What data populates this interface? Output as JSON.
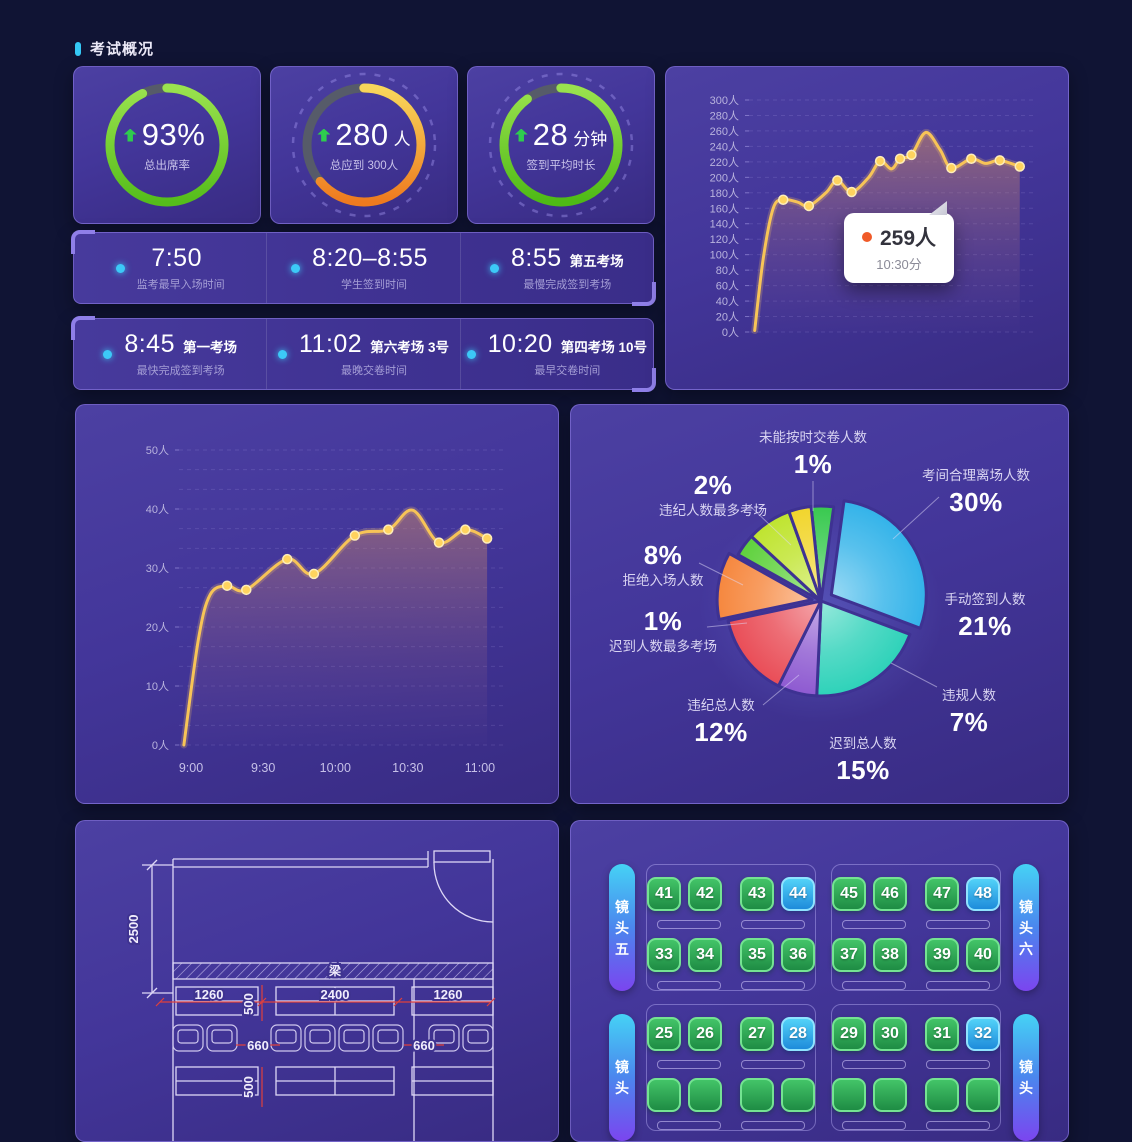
{
  "header": {
    "title": "考试概况"
  },
  "colors": {
    "background": "#101434",
    "card_purple": "#43369a",
    "accent_cyan": "#35c8f5",
    "line": "#f7c457",
    "dim_red": "#e0403c",
    "seat_green": "#2fae55",
    "seat_blue": "#37b9ef"
  },
  "stat_cards": [
    {
      "value": "93%",
      "unit": "",
      "label": "总出席率",
      "trend": "up",
      "ring": {
        "pct": 93,
        "from": "#9ae24e",
        "to": "#55bd1b",
        "deco": false
      }
    },
    {
      "value": "280",
      "unit": "人",
      "label": "总应到 300人",
      "trend": "up",
      "ring": {
        "pct": 64,
        "from": "#f8d75b",
        "to": "#ee7a1f",
        "deco": true
      }
    },
    {
      "value": "28",
      "unit": "分钟",
      "label": "签到平均时长",
      "trend": "up",
      "ring": {
        "pct": 90,
        "from": "#9ae24e",
        "to": "#4eba16",
        "deco": true
      }
    }
  ],
  "time_rows": [
    [
      {
        "time": "7:50",
        "suffix": "",
        "label": "监考最早入场时间"
      },
      {
        "time": "8:20–8:55",
        "suffix": "",
        "label": "学生签到时间"
      },
      {
        "time": "8:55",
        "suffix": "第五考场",
        "label": "最慢完成签到考场"
      }
    ],
    [
      {
        "time": "8:45",
        "suffix": "第一考场",
        "label": "最快完成签到考场"
      },
      {
        "time": "11:02",
        "suffix": "第六考场 3号",
        "label": "最晚交卷时间"
      },
      {
        "time": "10:20",
        "suffix": "第四考场 10号",
        "label": "最早交卷时间"
      }
    ]
  ],
  "chart_data": [
    {
      "id": "signin-trend-overview",
      "type": "line",
      "ylim": [
        0,
        300
      ],
      "ytick_step": 20,
      "ytick_suffix": "人",
      "grid": "dashed",
      "legend": "none",
      "xticks": [],
      "tooltip": {
        "value": "259人",
        "time": "10:30分"
      },
      "points": [
        [
          0.02,
          2,
          0
        ],
        [
          0.05,
          95,
          0
        ],
        [
          0.085,
          160,
          0
        ],
        [
          0.12,
          171,
          1
        ],
        [
          0.17,
          168,
          0
        ],
        [
          0.21,
          163,
          1
        ],
        [
          0.27,
          180,
          0
        ],
        [
          0.31,
          196,
          1
        ],
        [
          0.36,
          181,
          1
        ],
        [
          0.42,
          200,
          0
        ],
        [
          0.46,
          221,
          1
        ],
        [
          0.5,
          211,
          0
        ],
        [
          0.53,
          224,
          1
        ],
        [
          0.57,
          229,
          1
        ],
        [
          0.62,
          258,
          0
        ],
        [
          0.67,
          236,
          0
        ],
        [
          0.71,
          212,
          1
        ],
        [
          0.78,
          224,
          1
        ],
        [
          0.83,
          218,
          0
        ],
        [
          0.88,
          222,
          1
        ],
        [
          0.95,
          214,
          1
        ]
      ]
    },
    {
      "id": "signin-trend-room",
      "type": "line",
      "ylim": [
        0,
        50
      ],
      "ytick_step": 10,
      "ytick_suffix": "人",
      "grid": "dashed",
      "legend": "none",
      "xticks": [
        {
          "label": "9:00",
          "x": 0.037
        },
        {
          "label": "9:30",
          "x": 0.259
        },
        {
          "label": "10:00",
          "x": 0.481
        },
        {
          "label": "10:30",
          "x": 0.704
        },
        {
          "label": "11:00",
          "x": 0.926
        }
      ],
      "points": [
        [
          0.015,
          0,
          0
        ],
        [
          0.06,
          18,
          0
        ],
        [
          0.096,
          25.5,
          0
        ],
        [
          0.148,
          27,
          1
        ],
        [
          0.207,
          26.3,
          1
        ],
        [
          0.333,
          31.5,
          1
        ],
        [
          0.415,
          29,
          1
        ],
        [
          0.541,
          35.5,
          1
        ],
        [
          0.644,
          36.5,
          1
        ],
        [
          0.719,
          39.8,
          0
        ],
        [
          0.8,
          34.3,
          1
        ],
        [
          0.881,
          36.5,
          1
        ],
        [
          0.948,
          35,
          1
        ]
      ]
    },
    {
      "id": "exam-anomaly-pie",
      "type": "pie",
      "slices": [
        {
          "label": "未能按时交卷人数",
          "pct": 1,
          "color": "#38c94f"
        },
        {
          "label": "考间合理离场人数",
          "pct": 30,
          "color": "#33b3e9"
        },
        {
          "label": "手动签到人数",
          "pct": 21,
          "color": "#2ed2b9"
        },
        {
          "label": "违规人数",
          "pct": 7,
          "color": "#8e5ad1"
        },
        {
          "label": "迟到总人数",
          "pct": 15,
          "color": "#e94d57"
        },
        {
          "label": "违纪总人数",
          "pct": 12,
          "color": "#f6873e"
        },
        {
          "label": "迟到人数最多考场",
          "pct": 1,
          "color": "#5ed13c"
        },
        {
          "label": "拒绝入场人数",
          "pct": 8,
          "color": "#bfe42f"
        },
        {
          "label": "违纪人数最多考场",
          "pct": 2,
          "color": "#f1d52c"
        }
      ]
    }
  ],
  "floorplan": {
    "beam_label": "梁",
    "dim_height": "2500",
    "dim_left": "1260",
    "dim_center": "2400",
    "dim_right": "1260",
    "dim_depth1": "500",
    "dim_depth2": "500",
    "dim_gap_left": "660",
    "dim_gap_right": "660"
  },
  "seatmap": {
    "cameras": [
      {
        "label": "镜头五"
      },
      {
        "label": "镜头六"
      },
      {
        "label": "镜头"
      },
      {
        "label": "镜头"
      }
    ],
    "blocks": [
      {
        "rows": [
          [
            "41",
            "42",
            "43",
            "44"
          ],
          [
            "33",
            "34",
            "35",
            "36"
          ]
        ],
        "highlighted": [
          "44"
        ]
      },
      {
        "rows": [
          [
            "45",
            "46",
            "47",
            "48"
          ],
          [
            "37",
            "38",
            "39",
            "40"
          ]
        ],
        "highlighted": [
          "48"
        ]
      },
      {
        "rows": [
          [
            "25",
            "26",
            "27",
            "28"
          ],
          [
            "",
            "",
            "",
            ""
          ]
        ],
        "highlighted": [
          "28"
        ]
      },
      {
        "rows": [
          [
            "29",
            "30",
            "31",
            "32"
          ],
          [
            "",
            "",
            "",
            ""
          ]
        ],
        "highlighted": [
          "32"
        ]
      }
    ]
  }
}
